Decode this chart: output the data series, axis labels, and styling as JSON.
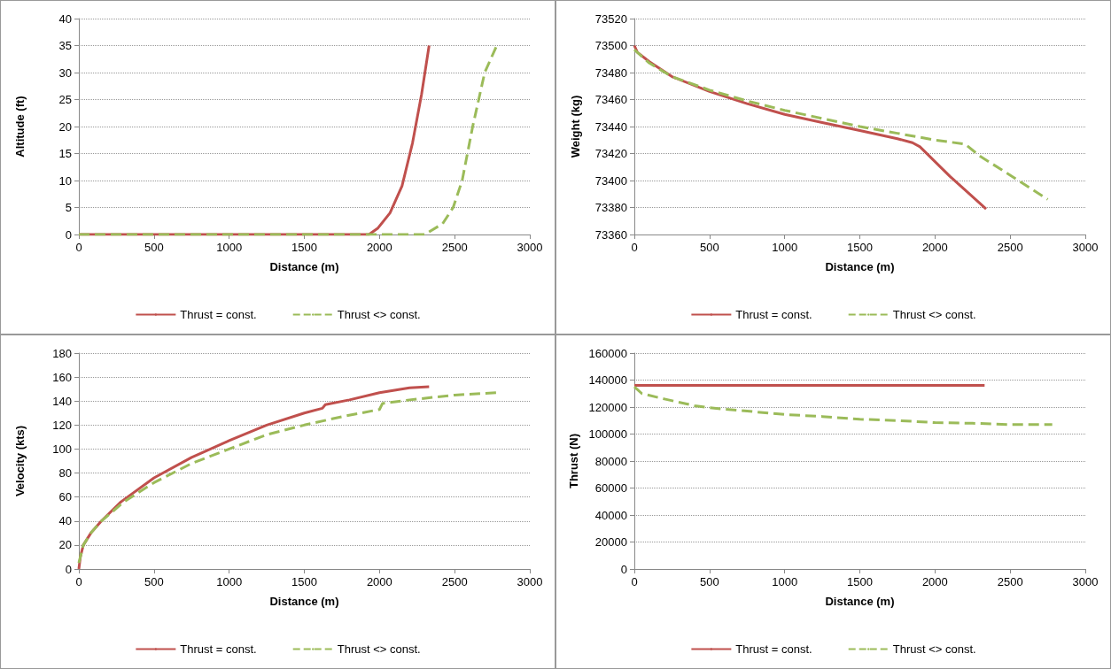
{
  "chart_data": [
    {
      "type": "line",
      "xlabel": "Distance (m)",
      "ylabel": "Altitude (ft)",
      "xlim": [
        0,
        3000
      ],
      "xticks": [
        0,
        500,
        1000,
        1500,
        2000,
        2500,
        3000
      ],
      "ylim": [
        0,
        40
      ],
      "yticks": [
        0,
        5,
        10,
        15,
        20,
        25,
        30,
        35,
        40
      ],
      "grid": "y",
      "legend": "bottom",
      "series": [
        {
          "name": "Thrust = const.",
          "color": "#c0504d",
          "line_style": "solid",
          "x": [
            0,
            1930,
            1990,
            2070,
            2150,
            2220,
            2280,
            2330
          ],
          "values": [
            0,
            0,
            1.2,
            4,
            9,
            17,
            26,
            35
          ]
        },
        {
          "name": "Thrust <> const.",
          "color": "#9bbb59",
          "line_style": "dashed",
          "x": [
            0,
            2300,
            2330,
            2420,
            2490,
            2550,
            2620,
            2700,
            2780
          ],
          "values": [
            0,
            0,
            0.5,
            2,
            5,
            10,
            20,
            30,
            35
          ]
        }
      ]
    },
    {
      "type": "line",
      "xlabel": "Distance (m)",
      "ylabel": "Weight (kg)",
      "xlim": [
        0,
        3000
      ],
      "xticks": [
        0,
        500,
        1000,
        1500,
        2000,
        2500,
        3000
      ],
      "ylim": [
        73360,
        73520
      ],
      "yticks": [
        73360,
        73380,
        73400,
        73420,
        73440,
        73460,
        73480,
        73500,
        73520
      ],
      "grid": "y",
      "legend": "bottom",
      "series": [
        {
          "name": "Thrust = const.",
          "color": "#c0504d",
          "line_style": "solid",
          "x": [
            0,
            20,
            100,
            250,
            500,
            750,
            1000,
            1250,
            1500,
            1750,
            1850,
            1900,
            2000,
            2100,
            2200,
            2340
          ],
          "values": [
            73500,
            73495,
            73488,
            73477,
            73466,
            73457,
            73449,
            73443,
            73437,
            73431,
            73428,
            73425,
            73414,
            73403,
            73393,
            73379
          ]
        },
        {
          "name": "Thrust <> const.",
          "color": "#9bbb59",
          "line_style": "dashed",
          "x": [
            0,
            100,
            250,
            500,
            750,
            1000,
            1250,
            1500,
            1750,
            2000,
            2200,
            2300,
            2500,
            2750
          ],
          "values": [
            73497,
            73487,
            73477,
            73467,
            73459,
            73452,
            73446,
            73440,
            73435,
            73430,
            73427,
            73418,
            73404,
            73386
          ]
        }
      ]
    },
    {
      "type": "line",
      "xlabel": "Distance (m)",
      "ylabel": "Velocity (kts)",
      "xlim": [
        0,
        3000
      ],
      "xticks": [
        0,
        500,
        1000,
        1500,
        2000,
        2500,
        3000
      ],
      "ylim": [
        0,
        180
      ],
      "yticks": [
        0,
        20,
        40,
        60,
        80,
        100,
        120,
        140,
        160,
        180
      ],
      "grid": "y",
      "legend": "bottom",
      "series": [
        {
          "name": "Thrust = const.",
          "color": "#c0504d",
          "line_style": "solid",
          "x": [
            0,
            10,
            30,
            80,
            150,
            280,
            500,
            750,
            1000,
            1250,
            1500,
            1620,
            1640,
            1800,
            2000,
            2200,
            2330
          ],
          "values": [
            0,
            10,
            20,
            30,
            40,
            56,
            76,
            93,
            107,
            120,
            130,
            134,
            137,
            141,
            147,
            151,
            152
          ]
        },
        {
          "name": "Thrust <> const.",
          "color": "#9bbb59",
          "line_style": "dashed",
          "x": [
            0,
            30,
            80,
            150,
            300,
            500,
            750,
            1000,
            1250,
            1500,
            1750,
            2000,
            2020,
            2200,
            2500,
            2780
          ],
          "values": [
            5,
            20,
            30,
            40,
            56,
            72,
            88,
            100,
            112,
            120,
            127,
            133,
            138,
            141,
            145,
            147
          ]
        }
      ]
    },
    {
      "type": "line",
      "xlabel": "Distance (m)",
      "ylabel": "Thrust (N)",
      "xlim": [
        0,
        3000
      ],
      "xticks": [
        0,
        500,
        1000,
        1500,
        2000,
        2500,
        3000
      ],
      "ylim": [
        0,
        160000
      ],
      "yticks": [
        0,
        20000,
        40000,
        60000,
        80000,
        100000,
        120000,
        140000,
        160000
      ],
      "grid": "y",
      "legend": "bottom",
      "series": [
        {
          "name": "Thrust = const.",
          "color": "#c0504d",
          "line_style": "solid",
          "x": [
            0,
            2330
          ],
          "values": [
            136000,
            136000
          ]
        },
        {
          "name": "Thrust <> const.",
          "color": "#9bbb59",
          "line_style": "dashed",
          "x": [
            0,
            50,
            200,
            400,
            500,
            750,
            1000,
            1250,
            1500,
            1750,
            2000,
            2250,
            2500,
            2780
          ],
          "values": [
            135000,
            130000,
            126000,
            121000,
            119500,
            117000,
            114500,
            113000,
            111000,
            110000,
            108500,
            108000,
            107000,
            107000
          ]
        }
      ]
    }
  ]
}
